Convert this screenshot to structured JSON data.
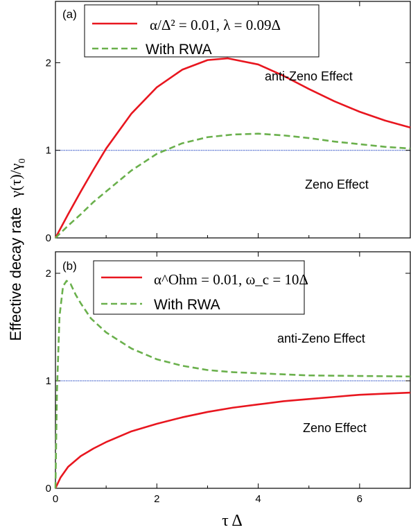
{
  "ylabel_main": "Effective decay rate",
  "ylabel_symbol": "γ(τ)/γ",
  "ylabel_sub": "0",
  "xlabel": "τ Δ",
  "colors": {
    "exact": "#e8161f",
    "rwa": "#6ab04c",
    "reference": "#1a3fc0",
    "axis": "#000000"
  },
  "chart_data": [
    {
      "panel_label": "(a)",
      "type": "line",
      "xlim": [
        0,
        7
      ],
      "ylim": [
        0,
        2.7
      ],
      "xticks": [
        0,
        2,
        4,
        6
      ],
      "yticks": [
        0,
        1,
        2
      ],
      "annotations": {
        "upper": "anti-Zeno Effect",
        "lower": "Zeno Effect"
      },
      "legend": {
        "placement": "top-left",
        "exact_text": "α/Δ² = 0.01, λ = 0.09Δ",
        "rwa_text": "With RWA"
      },
      "reference_y": 1,
      "series": [
        {
          "key": "exact",
          "style": "solid",
          "x": [
            0,
            0.25,
            0.5,
            0.75,
            1,
            1.5,
            2,
            2.5,
            3,
            3.4,
            4,
            4.5,
            5,
            5.5,
            6,
            6.5,
            7
          ],
          "y": [
            0,
            0.27,
            0.53,
            0.78,
            1.02,
            1.42,
            1.72,
            1.92,
            2.03,
            2.05,
            1.98,
            1.85,
            1.7,
            1.56,
            1.44,
            1.34,
            1.26
          ]
        },
        {
          "key": "rwa",
          "style": "dashed",
          "x": [
            0,
            0.25,
            0.5,
            0.75,
            1,
            1.5,
            2,
            2.5,
            3,
            3.5,
            4,
            4.5,
            5,
            5.5,
            6,
            6.5,
            7
          ],
          "y": [
            0,
            0.14,
            0.27,
            0.41,
            0.53,
            0.77,
            0.96,
            1.08,
            1.15,
            1.18,
            1.19,
            1.17,
            1.14,
            1.1,
            1.07,
            1.04,
            1.02
          ]
        }
      ]
    },
    {
      "panel_label": "(b)",
      "type": "line",
      "xlim": [
        0,
        7
      ],
      "ylim": [
        0,
        2.2
      ],
      "xticks": [
        0,
        2,
        4,
        6
      ],
      "yticks": [
        0,
        1,
        2
      ],
      "xticklabels_shown": true,
      "annotations": {
        "upper": "anti-Zeno Effect",
        "lower": "Zeno Effect"
      },
      "legend": {
        "placement": "top-left",
        "exact_text": "α^Ohm = 0.01, ω_c = 10Δ",
        "rwa_text": "With RWA"
      },
      "reference_y": 1,
      "series": [
        {
          "key": "exact",
          "style": "solid",
          "x": [
            0,
            0.1,
            0.25,
            0.5,
            0.75,
            1,
            1.5,
            2,
            2.5,
            3,
            3.5,
            4,
            4.5,
            5,
            5.5,
            6,
            6.5,
            7
          ],
          "y": [
            0,
            0.1,
            0.2,
            0.3,
            0.37,
            0.43,
            0.53,
            0.6,
            0.66,
            0.71,
            0.75,
            0.78,
            0.81,
            0.83,
            0.85,
            0.87,
            0.88,
            0.89
          ]
        },
        {
          "key": "rwa",
          "style": "dashed",
          "x": [
            0,
            0.03,
            0.08,
            0.15,
            0.22,
            0.3,
            0.4,
            0.5,
            0.7,
            1,
            1.5,
            2,
            2.5,
            3,
            3.5,
            4,
            4.5,
            5,
            6,
            7
          ],
          "y": [
            0,
            0.9,
            1.6,
            1.88,
            1.93,
            1.9,
            1.8,
            1.72,
            1.58,
            1.45,
            1.3,
            1.2,
            1.14,
            1.1,
            1.08,
            1.07,
            1.06,
            1.05,
            1.045,
            1.04
          ]
        }
      ]
    }
  ]
}
